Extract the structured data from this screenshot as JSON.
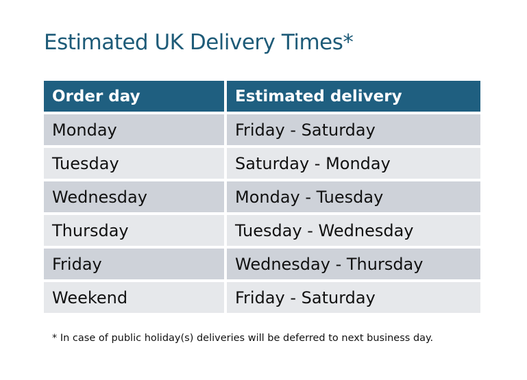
{
  "title": "Estimated UK Delivery Times*",
  "headers": [
    "Order day",
    "Estimated delivery"
  ],
  "rows": [
    [
      "Monday",
      "Friday - Saturday"
    ],
    [
      "Tuesday",
      "Saturday - Monday"
    ],
    [
      "Wednesday",
      "Monday - Tuesday"
    ],
    [
      "Thursday",
      "Tuesday - Wednesday"
    ],
    [
      "Friday",
      "Wednesday - Thursday"
    ],
    [
      "Weekend",
      "Friday - Saturday"
    ]
  ],
  "footnote": "* In case of public holiday(s) deliveries will be deferred to next business day.",
  "colors": {
    "header": "#1f5f80",
    "title": "#1e5b78",
    "row_dark": "#ced2d9",
    "row_light": "#e6e8eb"
  }
}
